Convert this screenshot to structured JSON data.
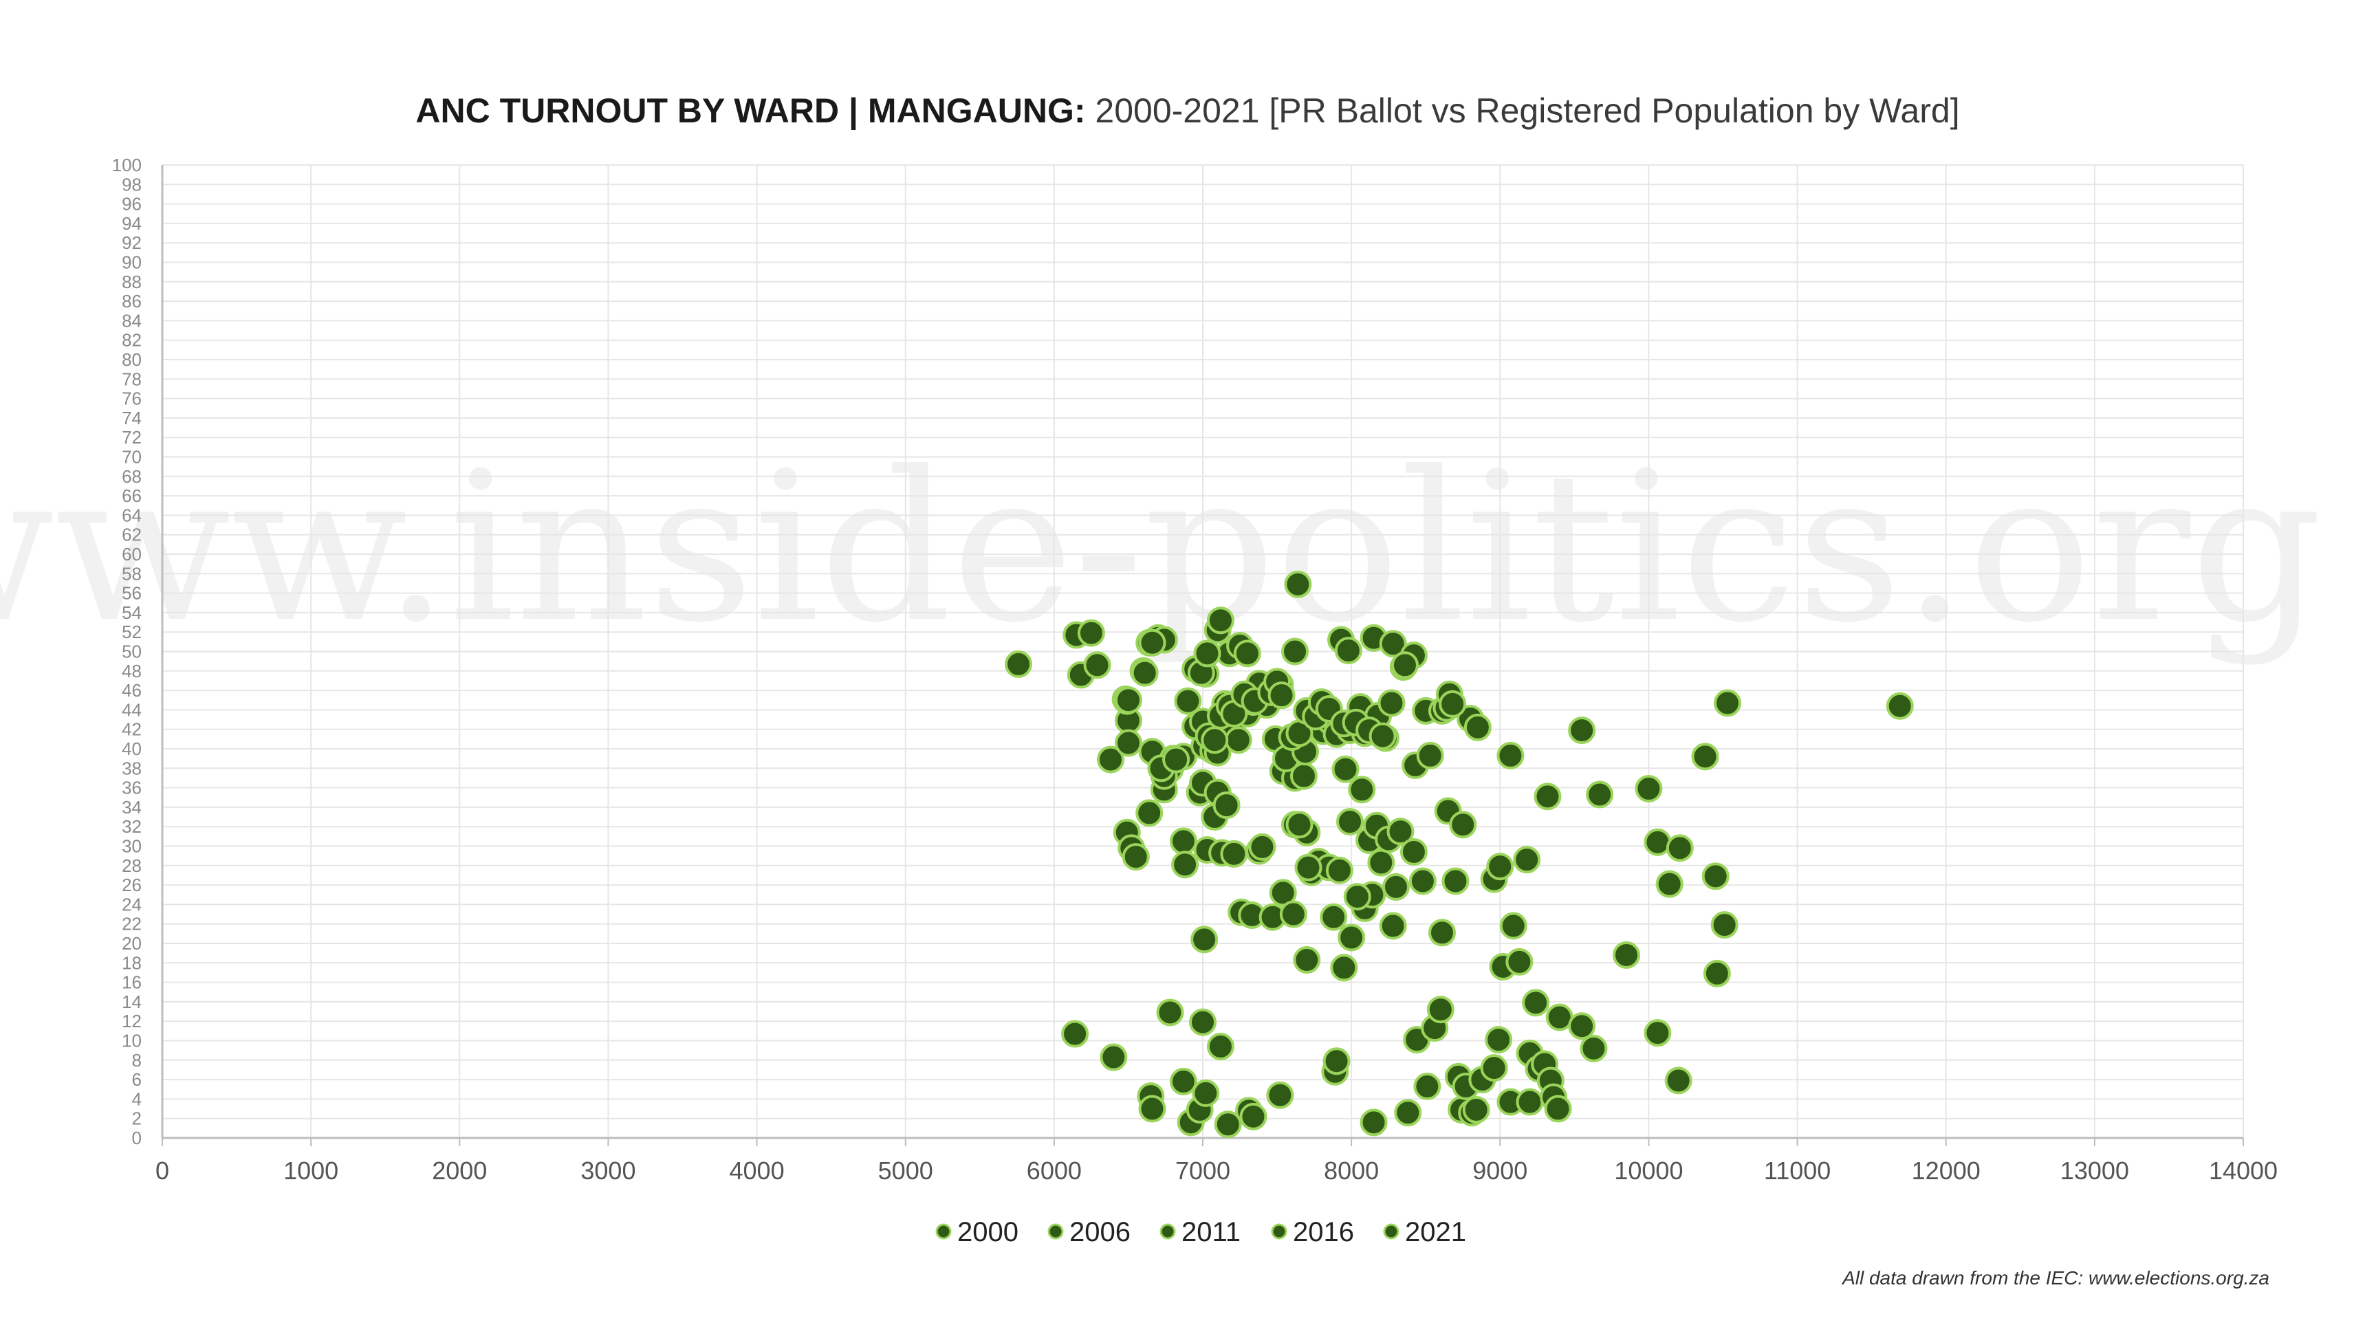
{
  "watermark": "www.inside-politics.org",
  "source_note": "All data drawn from the IEC: www.elections.org.za",
  "colors": {
    "marker_fill": "#2f5a16",
    "marker_stroke": "#9bd45a",
    "grid": "#e6e6e6",
    "axis": "#bdbdbd"
  },
  "chart_data": {
    "type": "scatter",
    "title_bold": "ANC TURNOUT BY WARD | MANGAUNG:",
    "title_rest": " 2000-2021 [PR Ballot vs Registered Population by Ward]",
    "xlim": [
      0,
      14000
    ],
    "ylim": [
      0,
      100
    ],
    "x_ticks": [
      "0",
      "1000",
      "2000",
      "3000",
      "4000",
      "5000",
      "6000",
      "7000",
      "8000",
      "9000",
      "10000",
      "11000",
      "12000",
      "13000",
      "14000"
    ],
    "y_ticks": [
      "0",
      "2",
      "4",
      "6",
      "8",
      "10",
      "12",
      "14",
      "16",
      "18",
      "20",
      "22",
      "24",
      "26",
      "28",
      "30",
      "32",
      "34",
      "36",
      "38",
      "40",
      "42",
      "44",
      "46",
      "48",
      "50",
      "52",
      "54",
      "56",
      "58",
      "60",
      "62",
      "64",
      "66",
      "68",
      "70",
      "72",
      "74",
      "76",
      "78",
      "80",
      "82",
      "84",
      "86",
      "88",
      "90",
      "92",
      "94",
      "96",
      "98",
      "100"
    ],
    "grid": true,
    "legend_position": "bottom",
    "series": [
      {
        "name": "2000",
        "points": [
          [
            5760,
            48.7
          ],
          [
            6150,
            51.7
          ],
          [
            6250,
            51.9
          ],
          [
            6180,
            47.6
          ],
          [
            6290,
            48.6
          ],
          [
            6480,
            45.1
          ],
          [
            6500,
            42.9
          ],
          [
            6600,
            48.0
          ],
          [
            6640,
            50.9
          ],
          [
            6700,
            51.4
          ],
          [
            6740,
            51.2
          ],
          [
            6950,
            48.2
          ],
          [
            7020,
            47.7
          ],
          [
            7100,
            52.2
          ],
          [
            7120,
            53.2
          ],
          [
            7180,
            49.8
          ],
          [
            7250,
            50.6
          ],
          [
            7300,
            49.8
          ],
          [
            7380,
            46.7
          ],
          [
            7430,
            44.5
          ],
          [
            7520,
            46.6
          ],
          [
            7620,
            50.0
          ],
          [
            7640,
            56.9
          ],
          [
            7830,
            43.0
          ],
          [
            7930,
            51.2
          ],
          [
            7980,
            50.1
          ],
          [
            8150,
            51.4
          ],
          [
            8280,
            50.8
          ],
          [
            8350,
            48.4
          ],
          [
            8420,
            49.6
          ]
        ]
      },
      {
        "name": "2006",
        "points": [
          [
            6140,
            10.7
          ],
          [
            6400,
            8.3
          ],
          [
            6650,
            4.3
          ],
          [
            6660,
            3.0
          ],
          [
            6780,
            12.9
          ],
          [
            6870,
            5.8
          ],
          [
            6920,
            1.6
          ],
          [
            6980,
            2.9
          ],
          [
            7000,
            11.9
          ],
          [
            7020,
            4.6
          ],
          [
            7120,
            9.4
          ],
          [
            7170,
            1.4
          ],
          [
            7310,
            2.8
          ],
          [
            7340,
            2.2
          ],
          [
            7520,
            4.4
          ],
          [
            7890,
            6.8
          ],
          [
            7900,
            7.9
          ],
          [
            8150,
            1.6
          ],
          [
            8380,
            2.6
          ],
          [
            8440,
            10.1
          ],
          [
            8510,
            5.3
          ],
          [
            8560,
            11.3
          ],
          [
            8600,
            13.2
          ],
          [
            8720,
            6.3
          ],
          [
            8740,
            2.9
          ],
          [
            8770,
            5.3
          ],
          [
            8810,
            2.6
          ],
          [
            8840,
            2.9
          ],
          [
            8880,
            6.0
          ],
          [
            8960,
            7.2
          ],
          [
            8990,
            10.1
          ],
          [
            9070,
            3.7
          ],
          [
            9200,
            3.7
          ],
          [
            9200,
            8.7
          ],
          [
            9260,
            7.1
          ],
          [
            9300,
            7.6
          ],
          [
            9340,
            5.9
          ],
          [
            9360,
            4.2
          ],
          [
            9390,
            3.0
          ],
          [
            9240,
            13.9
          ],
          [
            9400,
            12.4
          ],
          [
            9550,
            11.5
          ],
          [
            9630,
            9.2
          ],
          [
            10060,
            10.8
          ],
          [
            10200,
            5.9
          ]
        ]
      },
      {
        "name": "2011",
        "points": [
          [
            6490,
            31.4
          ],
          [
            6520,
            29.8
          ],
          [
            6550,
            28.9
          ],
          [
            6640,
            33.4
          ],
          [
            6740,
            35.8
          ],
          [
            6780,
            37.9
          ],
          [
            6870,
            30.5
          ],
          [
            6880,
            28.1
          ],
          [
            6980,
            35.5
          ],
          [
            7000,
            36.5
          ],
          [
            7010,
            20.4
          ],
          [
            7030,
            29.6
          ],
          [
            7080,
            33.0
          ],
          [
            7100,
            35.5
          ],
          [
            7130,
            29.3
          ],
          [
            7160,
            34.2
          ],
          [
            7210,
            29.2
          ],
          [
            7260,
            23.2
          ],
          [
            7330,
            22.9
          ],
          [
            7380,
            29.5
          ],
          [
            7400,
            29.9
          ],
          [
            7470,
            22.7
          ],
          [
            7540,
            25.2
          ],
          [
            7610,
            23.0
          ],
          [
            7620,
            32.2
          ],
          [
            7700,
            31.4
          ],
          [
            7730,
            27.3
          ],
          [
            7780,
            28.4
          ],
          [
            7850,
            27.8
          ],
          [
            7880,
            22.7
          ],
          [
            7920,
            27.5
          ],
          [
            7990,
            32.5
          ],
          [
            8070,
            35.8
          ],
          [
            8090,
            23.6
          ],
          [
            8120,
            30.6
          ],
          [
            8140,
            25.0
          ],
          [
            8170,
            32.1
          ],
          [
            8200,
            28.3
          ],
          [
            8250,
            30.7
          ],
          [
            8280,
            21.8
          ],
          [
            8300,
            25.8
          ],
          [
            8330,
            31.5
          ],
          [
            8420,
            29.4
          ],
          [
            8480,
            26.4
          ],
          [
            8610,
            21.1
          ],
          [
            8650,
            33.6
          ],
          [
            8700,
            26.4
          ],
          [
            8750,
            32.2
          ],
          [
            8960,
            26.6
          ],
          [
            9000,
            27.9
          ],
          [
            9020,
            17.6
          ],
          [
            9090,
            21.8
          ],
          [
            9130,
            18.1
          ],
          [
            9180,
            28.6
          ],
          [
            9320,
            35.1
          ],
          [
            9670,
            35.3
          ],
          [
            9850,
            18.8
          ],
          [
            10000,
            35.9
          ],
          [
            10060,
            30.4
          ],
          [
            10140,
            26.1
          ],
          [
            10210,
            29.8
          ],
          [
            10450,
            26.9
          ],
          [
            10460,
            16.9
          ],
          [
            10510,
            21.9
          ],
          [
            7700,
            18.3
          ],
          [
            7950,
            17.5
          ],
          [
            8000,
            20.6
          ],
          [
            7540,
            37.7
          ],
          [
            7620,
            37.0
          ],
          [
            7680,
            37.2
          ],
          [
            7960,
            37.9
          ],
          [
            7650,
            32.2
          ],
          [
            7710,
            27.8
          ]
        ]
      },
      {
        "name": "2016",
        "points": [
          [
            6380,
            38.9
          ],
          [
            6500,
            40.6
          ],
          [
            6490,
            44.9
          ],
          [
            6610,
            47.8
          ],
          [
            6660,
            39.7
          ],
          [
            6740,
            37.2
          ],
          [
            6800,
            39.0
          ],
          [
            6870,
            39.2
          ],
          [
            6900,
            44.9
          ],
          [
            6960,
            42.3
          ],
          [
            6990,
            47.8
          ],
          [
            7010,
            40.3
          ],
          [
            7070,
            39.8
          ],
          [
            7100,
            39.6
          ],
          [
            7150,
            44.6
          ],
          [
            7200,
            41.8
          ],
          [
            7240,
            40.9
          ],
          [
            7300,
            43.6
          ],
          [
            7340,
            44.8
          ],
          [
            7490,
            41.0
          ],
          [
            7560,
            39.0
          ],
          [
            7600,
            41.2
          ],
          [
            7690,
            39.7
          ],
          [
            7730,
            42.6
          ],
          [
            7810,
            41.8
          ],
          [
            7860,
            42.8
          ],
          [
            7900,
            41.5
          ],
          [
            7990,
            41.9
          ],
          [
            8060,
            44.3
          ],
          [
            8090,
            41.6
          ],
          [
            8180,
            43.4
          ],
          [
            8230,
            41.1
          ],
          [
            8270,
            44.7
          ],
          [
            8430,
            38.3
          ],
          [
            8500,
            43.9
          ],
          [
            8530,
            39.3
          ],
          [
            8610,
            43.9
          ],
          [
            8640,
            44.2
          ],
          [
            8660,
            45.6
          ],
          [
            8800,
            43.1
          ],
          [
            8850,
            42.2
          ],
          [
            9070,
            39.3
          ],
          [
            9550,
            41.9
          ],
          [
            10380,
            39.2
          ],
          [
            10530,
            44.7
          ],
          [
            11690,
            44.4
          ]
        ]
      },
      {
        "name": "2021",
        "points": [
          [
            6500,
            45.0
          ],
          [
            6660,
            50.9
          ],
          [
            6720,
            38.0
          ],
          [
            6820,
            38.9
          ],
          [
            6950,
            42.3
          ],
          [
            7000,
            42.8
          ],
          [
            7040,
            41.3
          ],
          [
            7080,
            40.9
          ],
          [
            7120,
            43.4
          ],
          [
            7180,
            44.4
          ],
          [
            7210,
            43.6
          ],
          [
            7280,
            45.6
          ],
          [
            7350,
            44.9
          ],
          [
            7460,
            45.8
          ],
          [
            7500,
            46.9
          ],
          [
            7530,
            45.5
          ],
          [
            7600,
            41.2
          ],
          [
            7650,
            41.6
          ],
          [
            7700,
            43.9
          ],
          [
            7760,
            43.3
          ],
          [
            7800,
            44.8
          ],
          [
            7850,
            44.1
          ],
          [
            7950,
            42.6
          ],
          [
            8030,
            42.7
          ],
          [
            8120,
            41.9
          ],
          [
            8210,
            41.3
          ],
          [
            8360,
            48.6
          ],
          [
            8680,
            44.6
          ],
          [
            8040,
            24.8
          ],
          [
            7030,
            49.8
          ]
        ]
      }
    ]
  },
  "legend": [
    {
      "label": "2000"
    },
    {
      "label": "2006"
    },
    {
      "label": "2011"
    },
    {
      "label": "2016"
    },
    {
      "label": "2021"
    }
  ]
}
